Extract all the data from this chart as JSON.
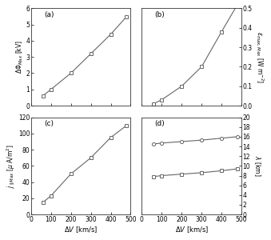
{
  "x": [
    60,
    100,
    200,
    300,
    400,
    480
  ],
  "a_y": [
    0.6,
    1.0,
    2.0,
    3.2,
    4.4,
    5.5
  ],
  "a_ylabel": "$\\Delta\\Phi_{Max}$ [kV]",
  "a_ylim": [
    0,
    6
  ],
  "a_yticks": [
    0,
    1,
    2,
    3,
    4,
    5,
    6
  ],
  "b_y": [
    0.01,
    0.03,
    0.1,
    0.2,
    0.38,
    0.52
  ],
  "b_ylabel": "$\\varepsilon_{max,Max}$ [W m$^{-2}$]",
  "b_ylim": [
    0,
    0.5
  ],
  "b_yticks": [
    0,
    0.1,
    0.2,
    0.3,
    0.4,
    0.5
  ],
  "c_y": [
    15,
    23,
    50,
    70,
    95,
    110
  ],
  "c_ylabel": "$j_{\\parallel Max}$ [$\\mu$ A/m$^{2}$]",
  "c_ylim": [
    0,
    120
  ],
  "c_yticks": [
    0,
    20,
    40,
    60,
    80,
    100,
    120
  ],
  "d_y1": [
    14.5,
    14.7,
    15.0,
    15.3,
    15.7,
    16.0
  ],
  "d_y2": [
    7.8,
    8.0,
    8.3,
    8.6,
    9.0,
    9.4
  ],
  "d_ylabel": "$\\lambda$ [km]",
  "d_ylim": [
    0,
    20
  ],
  "d_yticks": [
    0,
    2,
    4,
    6,
    8,
    10,
    12,
    14,
    16,
    18,
    20
  ],
  "xlabel": "$\\Delta V$ [km/s]",
  "xlim": [
    0,
    500
  ],
  "xticks": [
    0,
    100,
    200,
    300,
    400,
    500
  ],
  "xtick_labels_bottom": [
    "0",
    "100",
    "200",
    "300",
    "400",
    "500"
  ],
  "line_color": "#666666",
  "marker_filled": "s",
  "marker_open": "o",
  "marker_size": 3.0,
  "linewidth": 0.8,
  "label_a": "(a)",
  "label_b": "(b)",
  "label_c": "(c)",
  "label_d": "(d)",
  "bg_color": "#ffffff",
  "plot_bg": "#ffffff",
  "fig_edge_color": "#aaaaaa"
}
